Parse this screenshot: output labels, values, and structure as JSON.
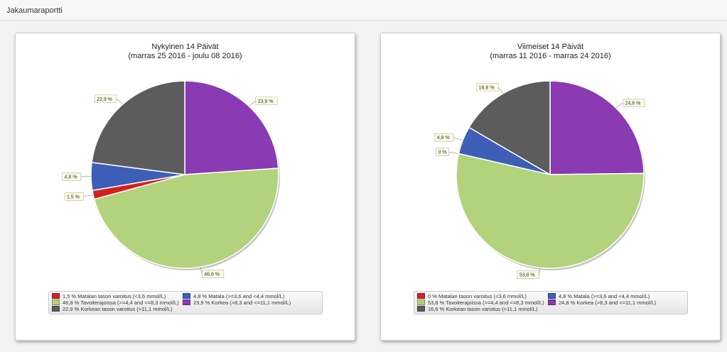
{
  "page_title": "Jakaumaraportti",
  "colors": {
    "very_low": "#d42020",
    "low": "#3d5fb8",
    "target": "#b2d37c",
    "high": "#8a3ab3",
    "very_high": "#5c5c5c"
  },
  "chart_data": [
    {
      "type": "pie",
      "title": "Nykyinen 14 Päivät",
      "subtitle": "(marras 25 2016 - joulu 08 2016)",
      "slices": [
        {
          "key": "high",
          "value": 23.9,
          "label": "23,9 %"
        },
        {
          "key": "target",
          "value": 46.8,
          "label": "46,8 %"
        },
        {
          "key": "very_low",
          "value": 1.5,
          "label": "1,5 %"
        },
        {
          "key": "low",
          "value": 4.8,
          "label": "4,8 %"
        },
        {
          "key": "very_high",
          "value": 22.9,
          "label": "22,9 %"
        }
      ],
      "legend": [
        {
          "key": "very_low",
          "text": "1,5 % Matalan tason varoitus (<3,6 mmol/L)"
        },
        {
          "key": "low",
          "text": "4,8 % Matala (>=3,6 and <4,4 mmol/L)"
        },
        {
          "key": "target",
          "text": "46,8 % Tavoiterajoissa (>=4,4 and <=8,3 mmol/L)"
        },
        {
          "key": "high",
          "text": "23,9 %  Korkea (>8,3 and <=11,1 mmol/L)"
        },
        {
          "key": "very_high",
          "text": "22,9 %  Korkean tason varoitus (>11,1 mmol/L)"
        }
      ]
    },
    {
      "type": "pie",
      "title": "Viimeiset 14 Päivät",
      "subtitle": "(marras 11 2016 - marras 24 2016)",
      "slices": [
        {
          "key": "high",
          "value": 24.8,
          "label": "24,8 %"
        },
        {
          "key": "target",
          "value": 53.8,
          "label": "53,8 %"
        },
        {
          "key": "very_low",
          "value": 0,
          "label": "0 %"
        },
        {
          "key": "low",
          "value": 4.8,
          "label": "4,8 %"
        },
        {
          "key": "very_high",
          "value": 16.6,
          "label": "16,6 %"
        }
      ],
      "legend": [
        {
          "key": "very_low",
          "text": "0 % Matalan tason varoitus (<3,6 mmol/L)"
        },
        {
          "key": "low",
          "text": "4,8 % Matala (>=3,6 and <4,4 mmol/L)"
        },
        {
          "key": "target",
          "text": "53,8 % Tavoiterajoissa (>=4,4 and <=8,3 mmol/L)"
        },
        {
          "key": "high",
          "text": "24,8 %  Korkea (>8,3 and <=11,1 mmol/L)"
        },
        {
          "key": "very_high",
          "text": "16,6 %  Korkean tason varoitus (>11,1 mmol/L)"
        }
      ]
    }
  ]
}
